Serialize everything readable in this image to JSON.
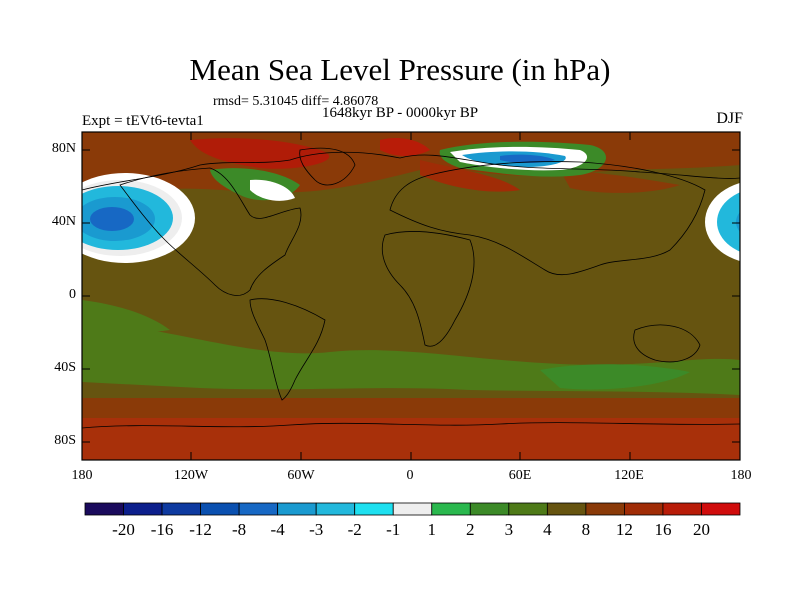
{
  "title": "Mean Sea Level Pressure (in hPa)",
  "stats_text": "rmsd= 5.31045 diff= 4.86078",
  "period_text": "1648kyr BP - 0000kyr BP",
  "experiment_text": "Expt = tEVt6-tevta1",
  "season_text": "DJF",
  "lat_ticks": [
    "80N",
    "40N",
    "0",
    "40S",
    "80S"
  ],
  "lon_ticks": [
    "180",
    "120W",
    "60W",
    "0",
    "60E",
    "120E",
    "180"
  ],
  "colorbar_labels": [
    "-20",
    "-16",
    "-12",
    "-8",
    "-4",
    "-3",
    "-2",
    "-1",
    "1",
    "2",
    "3",
    "4",
    "8",
    "12",
    "16",
    "20"
  ],
  "colorbar_colors": [
    "#1a0a5c",
    "#0c1f8c",
    "#0e3aa0",
    "#0a50b0",
    "#1768c4",
    "#1a9ad0",
    "#22b8dc",
    "#1ee0f0",
    "#eeeeee",
    "#2ab84e",
    "#3c8a28",
    "#4e7a18",
    "#665410",
    "#8a3a08",
    "#a02c06",
    "#b81c08",
    "#d00c0c"
  ],
  "colors": {
    "background_field": "#6a5410",
    "olive": "#4e7a18",
    "green": "#3c8a28",
    "brown": "#8a3a08",
    "red": "#b01c08"
  }
}
